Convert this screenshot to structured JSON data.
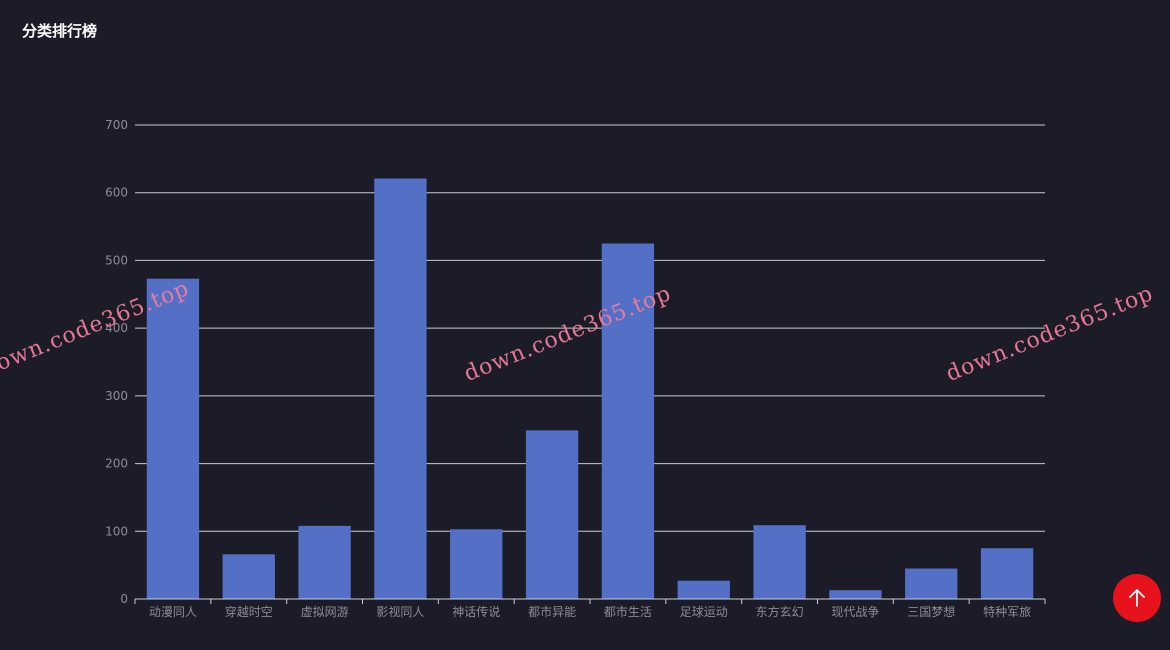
{
  "panel": {
    "title": "分类排行榜"
  },
  "chart_data": {
    "type": "bar",
    "title": "",
    "xlabel": "",
    "ylabel": "",
    "categories": [
      "动漫同人",
      "穿越时空",
      "虚拟网游",
      "影视同人",
      "神话传说",
      "都市异能",
      "都市生活",
      "足球运动",
      "东方玄幻",
      "现代战争",
      "三国梦想",
      "特种军旅"
    ],
    "values": [
      473,
      66,
      108,
      621,
      103,
      249,
      525,
      27,
      109,
      13,
      45,
      75
    ],
    "ylim": [
      0,
      700
    ],
    "yticks": [
      0,
      100,
      200,
      300,
      400,
      500,
      600,
      700
    ],
    "grid": true,
    "legend": "none",
    "colors": {
      "bar": "#5470c6",
      "gridline": "#c9cbd3",
      "axis_label": "#8a8d99",
      "background": "#1b1c27"
    }
  },
  "watermark": {
    "text": "down.code365.top",
    "color": "#f07c9a"
  },
  "back_to_top": {
    "icon": "arrow-up-icon",
    "color": "#e8121c"
  }
}
